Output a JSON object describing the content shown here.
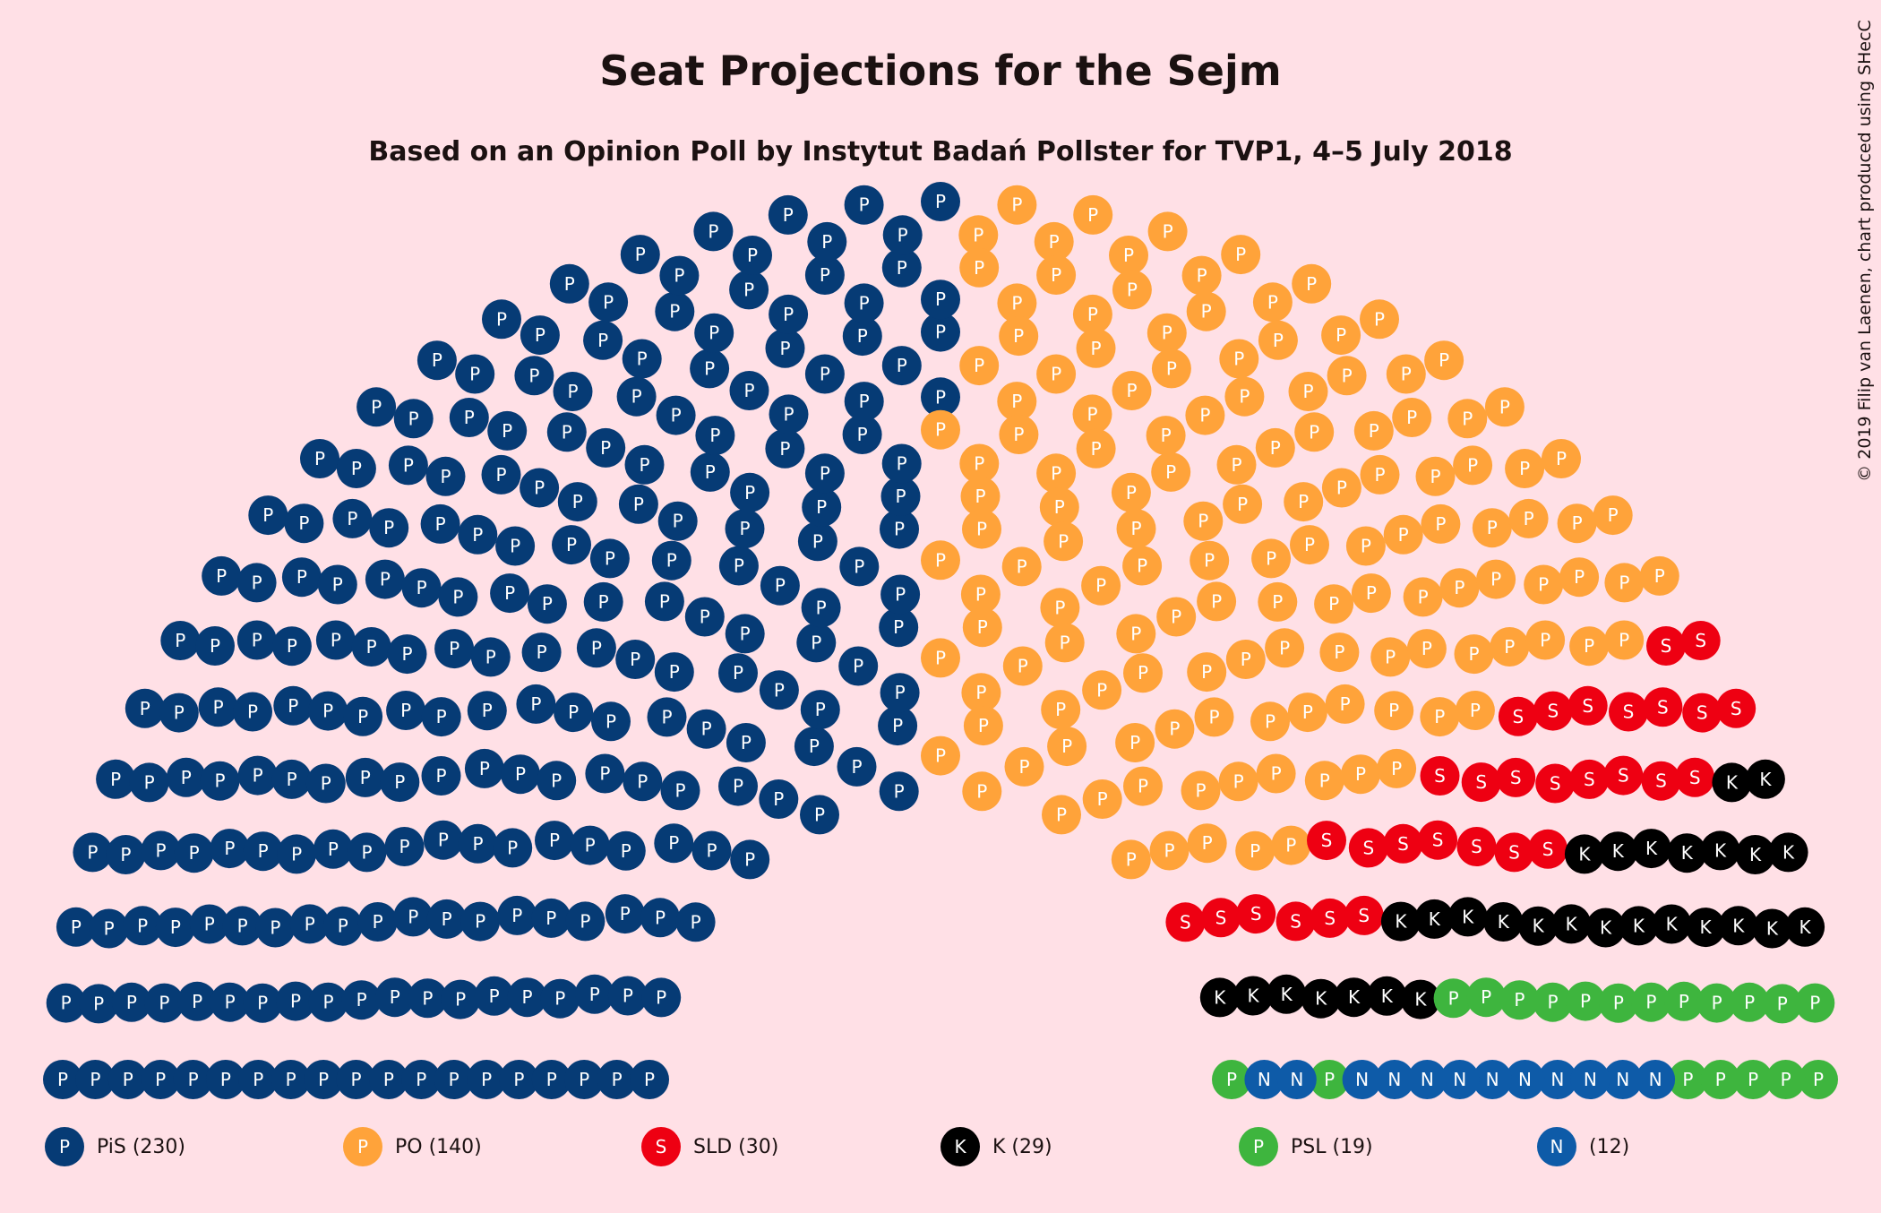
{
  "chart_data": {
    "type": "parliament",
    "title": "Seat Projections for the Sejm",
    "subtitle": "Based on an Opinion Poll by Instytut Badań Pollster for TVP1, 4–5 July 2018",
    "credit": "© 2019 Filip van Laenen, chart produced using SHecC",
    "total_seats": 460,
    "parties": [
      {
        "abbr": "P",
        "label": "PiS (230)",
        "seats": 230,
        "color": "#063B75"
      },
      {
        "abbr": "P",
        "label": "PO (140)",
        "seats": 140,
        "color": "#FFA33A"
      },
      {
        "abbr": "S",
        "label": "SLD (30)",
        "seats": 30,
        "color": "#EE0012"
      },
      {
        "abbr": "K",
        "label": "K (29)",
        "seats": 29,
        "color": "#000000"
      },
      {
        "abbr": "P",
        "label": "PSL (19)",
        "seats": 19,
        "color": "#3EB53E"
      },
      {
        "abbr": "N",
        "label": "(12)",
        "seats": 12,
        "color": "#0E5BA8"
      }
    ]
  }
}
